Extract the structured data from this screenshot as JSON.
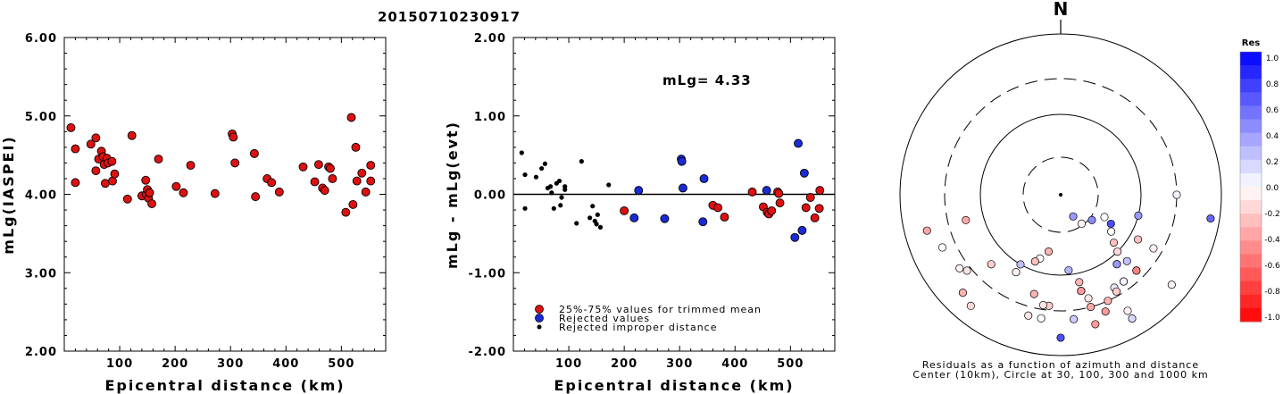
{
  "title": "20150710230917",
  "chart_data": [
    {
      "type": "scatter",
      "ylabel": "mLg(IASPEI)",
      "xlabel": "Epicentral distance (km)",
      "xlim": [
        0,
        580
      ],
      "ylim": [
        2.0,
        6.0
      ],
      "xticks": [
        "100",
        "200",
        "300",
        "400",
        "500"
      ],
      "yticks": [
        "2.00",
        "3.00",
        "4.00",
        "5.00",
        "6.00"
      ],
      "series": [
        {
          "color": "#dd1111",
          "points": [
            [
              12,
              4.85
            ],
            [
              20,
              4.58
            ],
            [
              20,
              4.15
            ],
            [
              48,
              4.64
            ],
            [
              57,
              4.72
            ],
            [
              57,
              4.3
            ],
            [
              62,
              4.45
            ],
            [
              67,
              4.55
            ],
            [
              70,
              4.48
            ],
            [
              72,
              4.38
            ],
            [
              74,
              4.14
            ],
            [
              77,
              4.46
            ],
            [
              79,
              4.4
            ],
            [
              86,
              4.42
            ],
            [
              87,
              4.17
            ],
            [
              91,
              4.26
            ],
            [
              114,
              3.94
            ],
            [
              122,
              4.75
            ],
            [
              140,
              3.98
            ],
            [
              147,
              4.18
            ],
            [
              148,
              4.0
            ],
            [
              150,
              4.06
            ],
            [
              152,
              3.95
            ],
            [
              154,
              4.02
            ],
            [
              158,
              3.88
            ],
            [
              170,
              4.45
            ],
            [
              202,
              4.1
            ],
            [
              215,
              4.02
            ],
            [
              228,
              4.37
            ],
            [
              272,
              4.01
            ],
            [
              303,
              4.77
            ],
            [
              305,
              4.73
            ],
            [
              308,
              4.4
            ],
            [
              343,
              4.52
            ],
            [
              345,
              3.97
            ],
            [
              366,
              4.2
            ],
            [
              374,
              4.15
            ],
            [
              388,
              4.03
            ],
            [
              431,
              4.35
            ],
            [
              452,
              4.16
            ],
            [
              459,
              4.38
            ],
            [
              466,
              4.08
            ],
            [
              470,
              4.05
            ],
            [
              477,
              4.35
            ],
            [
              480,
              4.33
            ],
            [
              484,
              4.2
            ],
            [
              508,
              3.77
            ],
            [
              518,
              4.98
            ],
            [
              521,
              3.87
            ],
            [
              526,
              4.6
            ],
            [
              528,
              4.17
            ],
            [
              537,
              4.27
            ],
            [
              544,
              4.03
            ],
            [
              553,
              4.17
            ],
            [
              553,
              4.37
            ]
          ]
        }
      ]
    },
    {
      "type": "scatter",
      "ylabel": "mLg - mLg(evt)",
      "xlabel": "Epicentral distance (km)",
      "xlim": [
        0,
        580
      ],
      "ylim": [
        -2.0,
        2.0
      ],
      "xticks": [
        "100",
        "200",
        "300",
        "400",
        "500"
      ],
      "yticks": [
        "-2.00",
        "-1.00",
        "0.00",
        "1.00",
        "2.00"
      ],
      "annotation": "mLg= 4.33",
      "legend": [
        {
          "label": "25%-75% values for trimmed mean",
          "color": "#dd1111"
        },
        {
          "label": "Rejected values",
          "color": "#1a2bd6"
        },
        {
          "label": "Rejected improper distance",
          "color": "#000000"
        }
      ],
      "series": [
        {
          "color": "#dd1111",
          "points": [
            [
              200,
              -0.21
            ],
            [
              360,
              -0.14
            ],
            [
              369,
              -0.17
            ],
            [
              381,
              -0.29
            ],
            [
              431,
              0.03
            ],
            [
              451,
              -0.16
            ],
            [
              458,
              -0.23
            ],
            [
              461,
              -0.25
            ],
            [
              466,
              -0.21
            ],
            [
              477,
              0.03
            ],
            [
              479,
              0.01
            ],
            [
              481,
              -0.11
            ],
            [
              528,
              -0.17
            ],
            [
              536,
              -0.04
            ],
            [
              544,
              -0.3
            ],
            [
              552,
              -0.18
            ],
            [
              553,
              0.05
            ]
          ]
        },
        {
          "color": "#1a2bd6",
          "points": [
            [
              218,
              -0.3
            ],
            [
              226,
              0.05
            ],
            [
              273,
              -0.31
            ],
            [
              303,
              0.45
            ],
            [
              304,
              0.42
            ],
            [
              306,
              0.08
            ],
            [
              342,
              -0.35
            ],
            [
              344,
              0.2
            ],
            [
              457,
              0.05
            ],
            [
              508,
              -0.55
            ],
            [
              514,
              0.65
            ],
            [
              521,
              -0.46
            ],
            [
              525,
              0.27
            ]
          ]
        },
        {
          "color": "#000000",
          "points": [
            [
              15,
              0.53
            ],
            [
              21,
              -0.18
            ],
            [
              21,
              0.25
            ],
            [
              41,
              0.22
            ],
            [
              51,
              0.33
            ],
            [
              57,
              0.39
            ],
            [
              62,
              0.08
            ],
            [
              67,
              0.1
            ],
            [
              69,
              0.02
            ],
            [
              73,
              -0.18
            ],
            [
              78,
              0.14
            ],
            [
              83,
              0.17
            ],
            [
              85,
              -0.14
            ],
            [
              87,
              -0.04
            ],
            [
              93,
              0.06
            ],
            [
              93,
              0.1
            ],
            [
              114,
              -0.37
            ],
            [
              123,
              0.42
            ],
            [
              138,
              -0.3
            ],
            [
              143,
              -0.15
            ],
            [
              147,
              -0.34
            ],
            [
              150,
              -0.38
            ],
            [
              152,
              -0.26
            ],
            [
              157,
              -0.42
            ],
            [
              172,
              0.12
            ]
          ]
        }
      ]
    }
  ],
  "polar": {
    "north_label": "N",
    "caption_line1": "Residuals as a function of azimuth and distance",
    "caption_line2": "Center (10km), Circle at 30, 100, 300 and 1000 km",
    "points": [
      [
        5.0,
        0.15
      ],
      [
        4.5,
        -0.05
      ],
      [
        4.0,
        0.7
      ],
      [
        3.0,
        0.05
      ],
      [
        3.3,
        0.6
      ],
      [
        5.5,
        -0.35
      ],
      [
        4.3,
        -0.05
      ],
      [
        5.0,
        -0.05
      ],
      [
        6.5,
        -0.1
      ],
      [
        8.5,
        -0.35
      ],
      [
        4.0,
        -0.25
      ],
      [
        6.0,
        0.7
      ],
      [
        7.0,
        0.25
      ],
      [
        5.8,
        0.2
      ],
      [
        5.0,
        0.1
      ],
      [
        4.0,
        -0.05
      ],
      [
        3.5,
        0.4
      ],
      [
        4.8,
        0.25
      ],
      [
        5.6,
        0.1
      ],
      [
        5.5,
        -0.1
      ],
      [
        6.2,
        -0.2
      ],
      [
        7.8,
        -0.05
      ],
      [
        7.3,
        -0.15
      ],
      [
        7.7,
        -0.1
      ],
      [
        6.3,
        0.0
      ],
      [
        6.3,
        -0.1
      ],
      [
        5.6,
        -0.3
      ],
      [
        4.5,
        -0.5
      ],
      [
        3.9,
        0.0
      ],
      [
        4.2,
        0.0
      ],
      [
        4.4,
        -0.25
      ],
      [
        4.5,
        -0.15
      ],
      [
        4.7,
        -0.2
      ],
      [
        4.7,
        0.4
      ],
      [
        4.5,
        0.25
      ],
      [
        4.8,
        0.05
      ],
      [
        5.3,
        -0.4
      ],
      [
        5.5,
        -0.4
      ],
      [
        5.0,
        -0.2
      ],
      [
        5.2,
        -0.3
      ],
      [
        5.8,
        0.3
      ],
      [
        4.8,
        -0.05
      ],
      [
        6.6,
        0.0
      ],
      [
        6.7,
        -0.25
      ],
      [
        7.0,
        -0.05
      ],
      [
        6.4,
        -0.3
      ],
      [
        5.6,
        -0.4
      ],
      [
        6.5,
        -0.3
      ],
      [
        7.5,
        -0.3
      ],
      [
        8.5,
        -0.35
      ],
      [
        8.2,
        0.0
      ],
      [
        7.5,
        -0.2
      ],
      [
        4.3,
        0.45
      ],
      [
        5.0,
        0.4
      ]
    ],
    "colorbar": {
      "title": "Res",
      "labels": [
        "1.0",
        "0.8",
        "0.6",
        "0.4",
        "0.2",
        "0.0",
        "-0.2",
        "-0.4",
        "-0.6",
        "-0.8",
        "-1.0"
      ]
    }
  }
}
